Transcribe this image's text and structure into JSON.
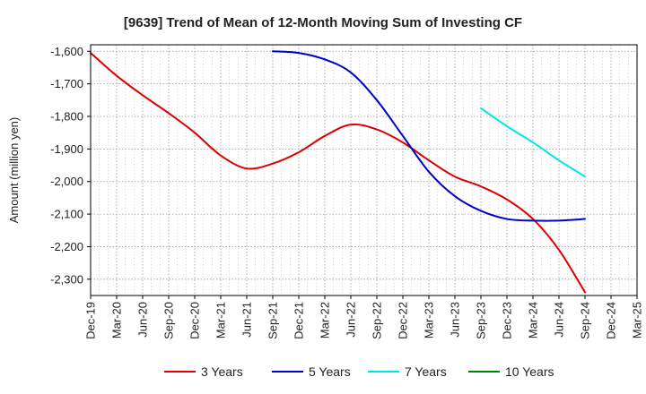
{
  "chart_data": {
    "type": "line",
    "title": "[9639]  Trend of Mean of 12-Month Moving Sum of Investing CF",
    "xlabel": "",
    "ylabel": "Amount (million yen)",
    "ylim": [
      -2350,
      -1580
    ],
    "yticks": [
      -1600,
      -1700,
      -1800,
      -1900,
      -2000,
      -2100,
      -2200,
      -2300
    ],
    "ytick_labels": [
      "-1,600",
      "-1,700",
      "-1,800",
      "-1,900",
      "-2,000",
      "-2,100",
      "-2,200",
      "-2,300"
    ],
    "categories": [
      "Dec-19",
      "Mar-20",
      "Jun-20",
      "Sep-20",
      "Dec-20",
      "Mar-21",
      "Jun-21",
      "Sep-21",
      "Dec-21",
      "Mar-22",
      "Jun-22",
      "Sep-22",
      "Dec-22",
      "Mar-23",
      "Jun-23",
      "Sep-23",
      "Dec-23",
      "Mar-24",
      "Jun-24",
      "Sep-24",
      "Dec-24",
      "Mar-25"
    ],
    "grid": true,
    "legend_position": "bottom",
    "series": [
      {
        "name": "3 Years",
        "color": "#dd0000",
        "values": [
          -1605,
          -1675,
          -1735,
          -1790,
          -1850,
          -1920,
          -1960,
          -1945,
          -1910,
          -1860,
          -1825,
          -1840,
          -1880,
          -1935,
          -1985,
          -2015,
          -2055,
          -2115,
          -2210,
          -2340,
          null,
          null
        ]
      },
      {
        "name": "5 Years",
        "color": "#0000cc",
        "values": [
          null,
          null,
          null,
          null,
          null,
          null,
          null,
          -1600,
          -1605,
          -1625,
          -1665,
          -1750,
          -1860,
          -1970,
          -2045,
          -2090,
          -2115,
          -2120,
          -2120,
          -2115,
          null,
          null
        ]
      },
      {
        "name": "7 Years",
        "color": "#00e5e5",
        "values": [
          null,
          null,
          null,
          null,
          null,
          null,
          null,
          null,
          null,
          null,
          null,
          null,
          null,
          null,
          null,
          -1775,
          -1830,
          -1880,
          -1935,
          -1985,
          null,
          null
        ]
      },
      {
        "name": "10 Years",
        "color": "#008000",
        "values": [
          null,
          null,
          null,
          null,
          null,
          null,
          null,
          null,
          null,
          null,
          null,
          null,
          null,
          null,
          null,
          null,
          null,
          null,
          null,
          null,
          null,
          null
        ]
      }
    ]
  }
}
